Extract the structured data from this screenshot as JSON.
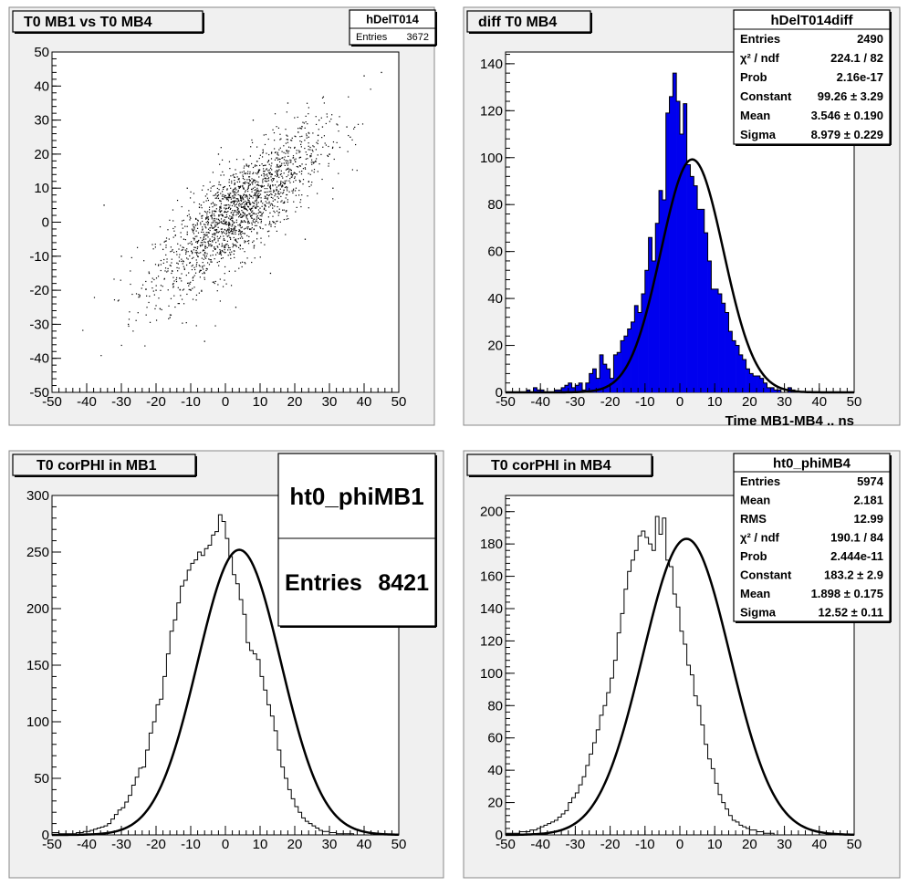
{
  "chart_data": [
    {
      "type": "scatter",
      "title": "T0 MB1 vs T0 MB4",
      "stats_box": {
        "name": "hDelT014",
        "rows": [
          [
            "Entries",
            "3672"
          ]
        ]
      },
      "xlim": [
        -50,
        50
      ],
      "ylim": [
        -50,
        50
      ],
      "x_ticks": [
        -50,
        -40,
        -30,
        -20,
        -10,
        0,
        10,
        20,
        30,
        40,
        50
      ],
      "y_ticks": [
        -50,
        -40,
        -30,
        -20,
        -10,
        0,
        10,
        20,
        30,
        40,
        50
      ],
      "x": [
        -30,
        -25,
        -22,
        -20,
        -18,
        -15,
        -14,
        -12,
        -10,
        -9,
        -8,
        -7,
        -6,
        -5,
        -4,
        -3,
        -2,
        -1,
        0,
        1,
        2,
        3,
        4,
        5,
        6,
        7,
        8,
        9,
        10,
        11,
        12,
        13,
        14,
        15,
        16,
        17,
        18,
        19,
        20,
        22,
        24,
        26,
        28,
        30,
        33,
        36,
        -28,
        -16,
        -11,
        -6,
        -2,
        3,
        8,
        13,
        18,
        23,
        27,
        31,
        35,
        40,
        -35,
        45
      ],
      "y": [
        -10,
        -22,
        -15,
        -20,
        -8,
        -18,
        -12,
        -5,
        -20,
        -2,
        -10,
        5,
        -15,
        -3,
        2,
        -8,
        8,
        -2,
        3,
        0,
        6,
        -5,
        10,
        2,
        8,
        -2,
        12,
        5,
        3,
        15,
        8,
        10,
        0,
        20,
        12,
        6,
        18,
        14,
        22,
        15,
        25,
        18,
        28,
        20,
        22,
        25,
        -30,
        -28,
        10,
        -35,
        20,
        -25,
        30,
        -15,
        35,
        -5,
        30,
        10,
        28,
        43,
        5,
        44
      ],
      "grid": false
    },
    {
      "type": "bar",
      "title": "diff T0 MB4",
      "xlabel": "Time MB1-MB4  ..  ns",
      "stats_box": {
        "name": "hDelT014diff",
        "rows": [
          [
            "Entries",
            "2490"
          ],
          [
            "χ² / ndf",
            "224.1 / 82"
          ],
          [
            "Prob",
            "2.16e-17"
          ],
          [
            "Constant",
            "99.26 ± 3.29"
          ],
          [
            "Mean",
            "3.546 ± 0.190"
          ],
          [
            "Sigma",
            "8.979 ± 0.229"
          ]
        ]
      },
      "xlim": [
        -50,
        50
      ],
      "ylim": [
        0,
        145
      ],
      "x_ticks": [
        -50,
        -40,
        -30,
        -20,
        -10,
        0,
        10,
        20,
        30,
        40,
        50
      ],
      "y_ticks": [
        0,
        20,
        40,
        60,
        80,
        100,
        120,
        140
      ],
      "fill_color": "#0000ee",
      "fit": {
        "constant": 99.26,
        "mean": 3.546,
        "sigma": 8.979
      },
      "bins_low_edge": -50,
      "bin_width": 1,
      "values": [
        0,
        0,
        0,
        0,
        0,
        0,
        1,
        0,
        2,
        1,
        1,
        0,
        0,
        0,
        1,
        1,
        2,
        3,
        4,
        2,
        3,
        4,
        1,
        4,
        8,
        10,
        6,
        16,
        12,
        10,
        6,
        16,
        17,
        22,
        24,
        27,
        30,
        37,
        34,
        42,
        52,
        66,
        56,
        72,
        86,
        82,
        119,
        126,
        136,
        124,
        110,
        123,
        97,
        92,
        88,
        78,
        78,
        68,
        56,
        44,
        44,
        42,
        38,
        34,
        26,
        22,
        20,
        16,
        14,
        10,
        8,
        7,
        7,
        6,
        4,
        2,
        2,
        1,
        1,
        0,
        0,
        2,
        1,
        0,
        0,
        0,
        0,
        0,
        0,
        0,
        0,
        0,
        0,
        0,
        0,
        0,
        0,
        0,
        0,
        0
      ]
    },
    {
      "type": "bar",
      "title": "T0 corPHI in MB1",
      "stats_box": {
        "name": "ht0_phiMB1",
        "rows": [
          [
            "Entries",
            "8421"
          ]
        ]
      },
      "xlim": [
        -50,
        50
      ],
      "ylim": [
        0,
        300
      ],
      "x_ticks": [
        -50,
        -40,
        -30,
        -20,
        -10,
        0,
        10,
        20,
        30,
        40,
        50
      ],
      "y_ticks": [
        0,
        50,
        100,
        150,
        200,
        250,
        300
      ],
      "fit": {
        "constant": 252,
        "mean": 4.0,
        "sigma": 12.0
      },
      "bins_low_edge": -50,
      "bin_width": 1,
      "values": [
        2,
        2,
        1,
        1,
        1,
        1,
        1,
        2,
        2,
        3,
        3,
        4,
        5,
        6,
        7,
        8,
        10,
        14,
        18,
        22,
        24,
        29,
        35,
        44,
        51,
        59,
        60,
        75,
        90,
        100,
        115,
        120,
        140,
        160,
        180,
        190,
        205,
        220,
        225,
        234,
        240,
        243,
        250,
        247,
        253,
        256,
        265,
        268,
        283,
        277,
        262,
        246,
        230,
        222,
        208,
        195,
        170,
        163,
        160,
        155,
        140,
        128,
        115,
        105,
        92,
        75,
        60,
        50,
        40,
        32,
        25,
        20,
        15,
        12,
        10,
        8,
        6,
        4,
        3,
        3,
        2,
        2,
        1,
        1,
        1,
        1,
        1,
        0,
        0,
        0,
        0,
        0,
        0,
        0,
        0,
        0,
        0,
        0,
        0,
        0
      ]
    },
    {
      "type": "bar",
      "title": "T0 corPHI in MB4",
      "stats_box": {
        "name": "ht0_phiMB4",
        "rows": [
          [
            "Entries",
            "5974"
          ],
          [
            "Mean",
            "2.181"
          ],
          [
            "RMS",
            "12.99"
          ],
          [
            "χ² / ndf",
            "190.1 / 84"
          ],
          [
            "Prob",
            "2.444e-11"
          ],
          [
            "Constant",
            "183.2 ± 2.9"
          ],
          [
            "Mean",
            "1.898 ± 0.175"
          ],
          [
            "Sigma",
            "12.52 ± 0.11"
          ]
        ]
      },
      "xlim": [
        -50,
        50
      ],
      "ylim": [
        0,
        210
      ],
      "x_ticks": [
        -50,
        -40,
        -30,
        -20,
        -10,
        0,
        10,
        20,
        30,
        40,
        50
      ],
      "y_ticks": [
        0,
        20,
        40,
        60,
        80,
        100,
        120,
        140,
        160,
        180,
        200
      ],
      "fit": {
        "constant": 183.2,
        "mean": 1.898,
        "sigma": 12.52
      },
      "bins_low_edge": -50,
      "bin_width": 1,
      "values": [
        1,
        1,
        1,
        1,
        2,
        2,
        2,
        3,
        3,
        4,
        5,
        6,
        7,
        8,
        9,
        11,
        13,
        15,
        20,
        23,
        26,
        31,
        36,
        43,
        50,
        57,
        65,
        74,
        80,
        88,
        97,
        108,
        125,
        137,
        152,
        163,
        170,
        176,
        185,
        188,
        184,
        180,
        176,
        197,
        186,
        196,
        170,
        166,
        149,
        141,
        126,
        118,
        105,
        99,
        86,
        80,
        68,
        56,
        47,
        41,
        32,
        25,
        20,
        16,
        12,
        9,
        8,
        6,
        5,
        4,
        3,
        3,
        2,
        2,
        1,
        1,
        1,
        0,
        0,
        0,
        0,
        0,
        0,
        0,
        0,
        0,
        0,
        0,
        0,
        0,
        0,
        0,
        0,
        0,
        0,
        0,
        0,
        0,
        0,
        0
      ]
    }
  ]
}
